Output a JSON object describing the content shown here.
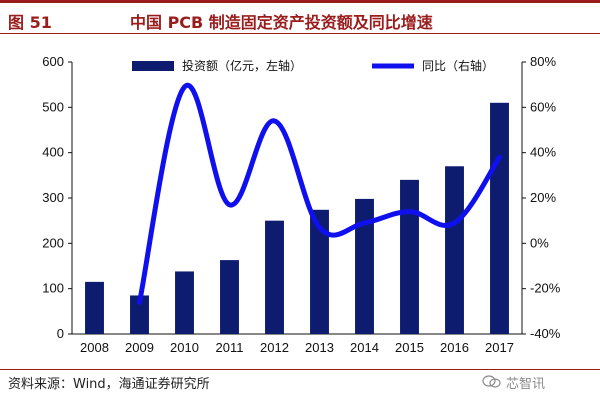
{
  "header": {
    "figure_label": "图 51",
    "title": "中国 PCB 制造固定资产投资额及同比增速"
  },
  "footer": {
    "source": "资料来源：Wind，海通证券研究所",
    "watermark": "芯智讯"
  },
  "colors": {
    "bar": "#0d1c6e",
    "line": "#1010ee",
    "accent": "#9b1c1c"
  },
  "chart_data": {
    "type": "bar+line",
    "title": "中国 PCB 制造固定资产投资额及同比增速",
    "categories": [
      "2008",
      "2009",
      "2010",
      "2011",
      "2012",
      "2013",
      "2014",
      "2015",
      "2016",
      "2017"
    ],
    "series": [
      {
        "name": "投资额（亿元，左轴）",
        "type": "bar",
        "axis": "left",
        "values": [
          115,
          85,
          138,
          163,
          250,
          274,
          298,
          340,
          370,
          510
        ]
      },
      {
        "name": "同比（右轴）",
        "type": "line",
        "axis": "right",
        "values": [
          null,
          -26,
          69,
          17,
          54,
          7,
          9,
          14,
          9,
          38
        ]
      }
    ],
    "y_left": {
      "min": 0,
      "max": 600,
      "ticks": [
        0,
        100,
        200,
        300,
        400,
        500,
        600
      ]
    },
    "y_right": {
      "min": -40,
      "max": 80,
      "ticks": [
        "-40%",
        "-20%",
        "0%",
        "20%",
        "40%",
        "60%",
        "80%"
      ]
    },
    "grid": false,
    "legend": "top"
  }
}
